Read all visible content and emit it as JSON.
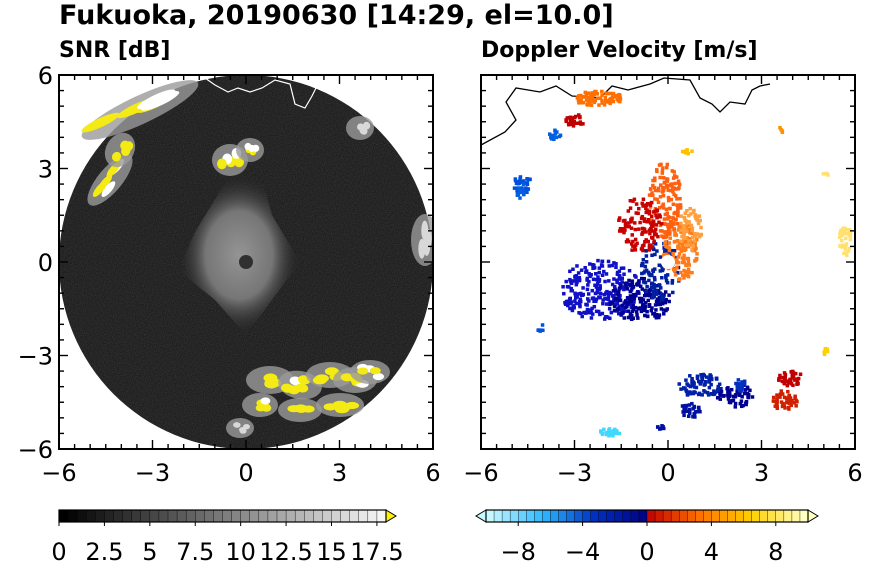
{
  "figure": {
    "title": "Fukuoka, 20190630 [14:29, el=10.0]"
  },
  "chart_data": [
    {
      "type": "heatmap",
      "title": "SNR [dB]",
      "xlim": [
        -6,
        6
      ],
      "ylim": [
        -6,
        6
      ],
      "xticks": [
        -6,
        -3,
        0,
        3,
        6
      ],
      "yticks": [
        -6,
        -3,
        0,
        3,
        6
      ],
      "xtick_labels": [
        "−6",
        "−3",
        "0",
        "3",
        "6"
      ],
      "ytick_labels": [
        "−6",
        "−3",
        "0",
        "3",
        "6"
      ],
      "grid": false,
      "colorbar": {
        "range": [
          0,
          18
        ],
        "extend": "max",
        "ticks": [
          0,
          2.5,
          5,
          7.5,
          10,
          12.5,
          15,
          17.5
        ],
        "tick_labels": [
          "0",
          "2.5",
          "5",
          "7.5",
          "10",
          "12.5",
          "15",
          "17.5"
        ],
        "colors": [
          "#000000",
          "#ffffff",
          "#fff200"
        ]
      }
    },
    {
      "type": "heatmap",
      "title": "Doppler Velocity [m/s]",
      "xlim": [
        -6,
        6
      ],
      "ylim": [
        -6,
        6
      ],
      "xticks": [
        -6,
        -3,
        0,
        3,
        6
      ],
      "yticks": [
        -6,
        -3,
        0,
        3,
        6
      ],
      "xtick_labels": [
        "−6",
        "−3",
        "0",
        "3",
        "6"
      ],
      "ytick_labels": [
        "",
        "",
        "",
        "",
        ""
      ],
      "grid": false,
      "colorbar": {
        "range": [
          -10,
          10
        ],
        "extend": "both",
        "ticks": [
          -8,
          -4,
          0,
          4,
          8
        ],
        "tick_labels": [
          "−8",
          "−4",
          "0",
          "4",
          "8"
        ],
        "colors": [
          "#c8f8ff",
          "#30b8ff",
          "#0030c0",
          "#000080",
          "#c00000",
          "#ff7000",
          "#ffd000",
          "#ffffc0"
        ]
      }
    }
  ]
}
